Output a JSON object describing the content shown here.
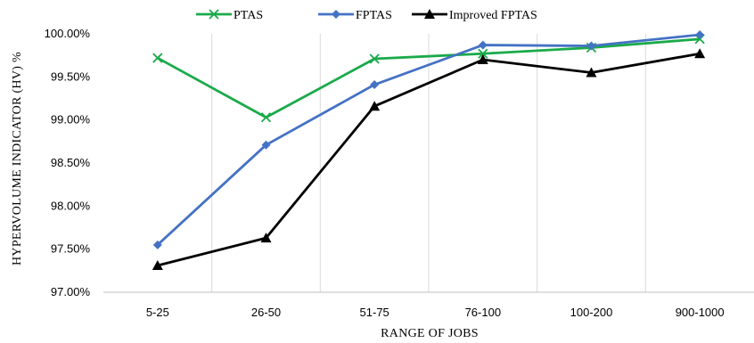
{
  "chart_data": {
    "type": "line",
    "title": "",
    "xlabel": "RANGE OF JOBS",
    "ylabel": "HYPERVOLUME INDICATOR (HV) %",
    "categories": [
      "5-25",
      "26-50",
      "51-75",
      "76-100",
      "100-200",
      "900-1000"
    ],
    "ylim": [
      97.0,
      100.0
    ],
    "yticks": [
      97.0,
      97.5,
      98.0,
      98.5,
      99.0,
      99.5,
      100.0
    ],
    "ytick_labels": [
      "97.00%",
      "97.50%",
      "98.00%",
      "98.50%",
      "99.00%",
      "99.50%",
      "100.00%"
    ],
    "grid": "vertical",
    "legend_position": "top",
    "series": [
      {
        "name": "PTAS",
        "color": "#1aaa4a",
        "marker": "x",
        "values": [
          99.72,
          99.03,
          99.71,
          99.77,
          99.84,
          99.94
        ]
      },
      {
        "name": "FPTAS",
        "color": "#4472c4",
        "marker": "diamond",
        "values": [
          97.55,
          98.71,
          99.41,
          99.87,
          99.86,
          99.99
        ]
      },
      {
        "name": "Improved FPTAS",
        "color": "#000000",
        "marker": "triangle",
        "values": [
          97.31,
          97.63,
          99.16,
          99.7,
          99.55,
          99.77
        ]
      }
    ]
  }
}
